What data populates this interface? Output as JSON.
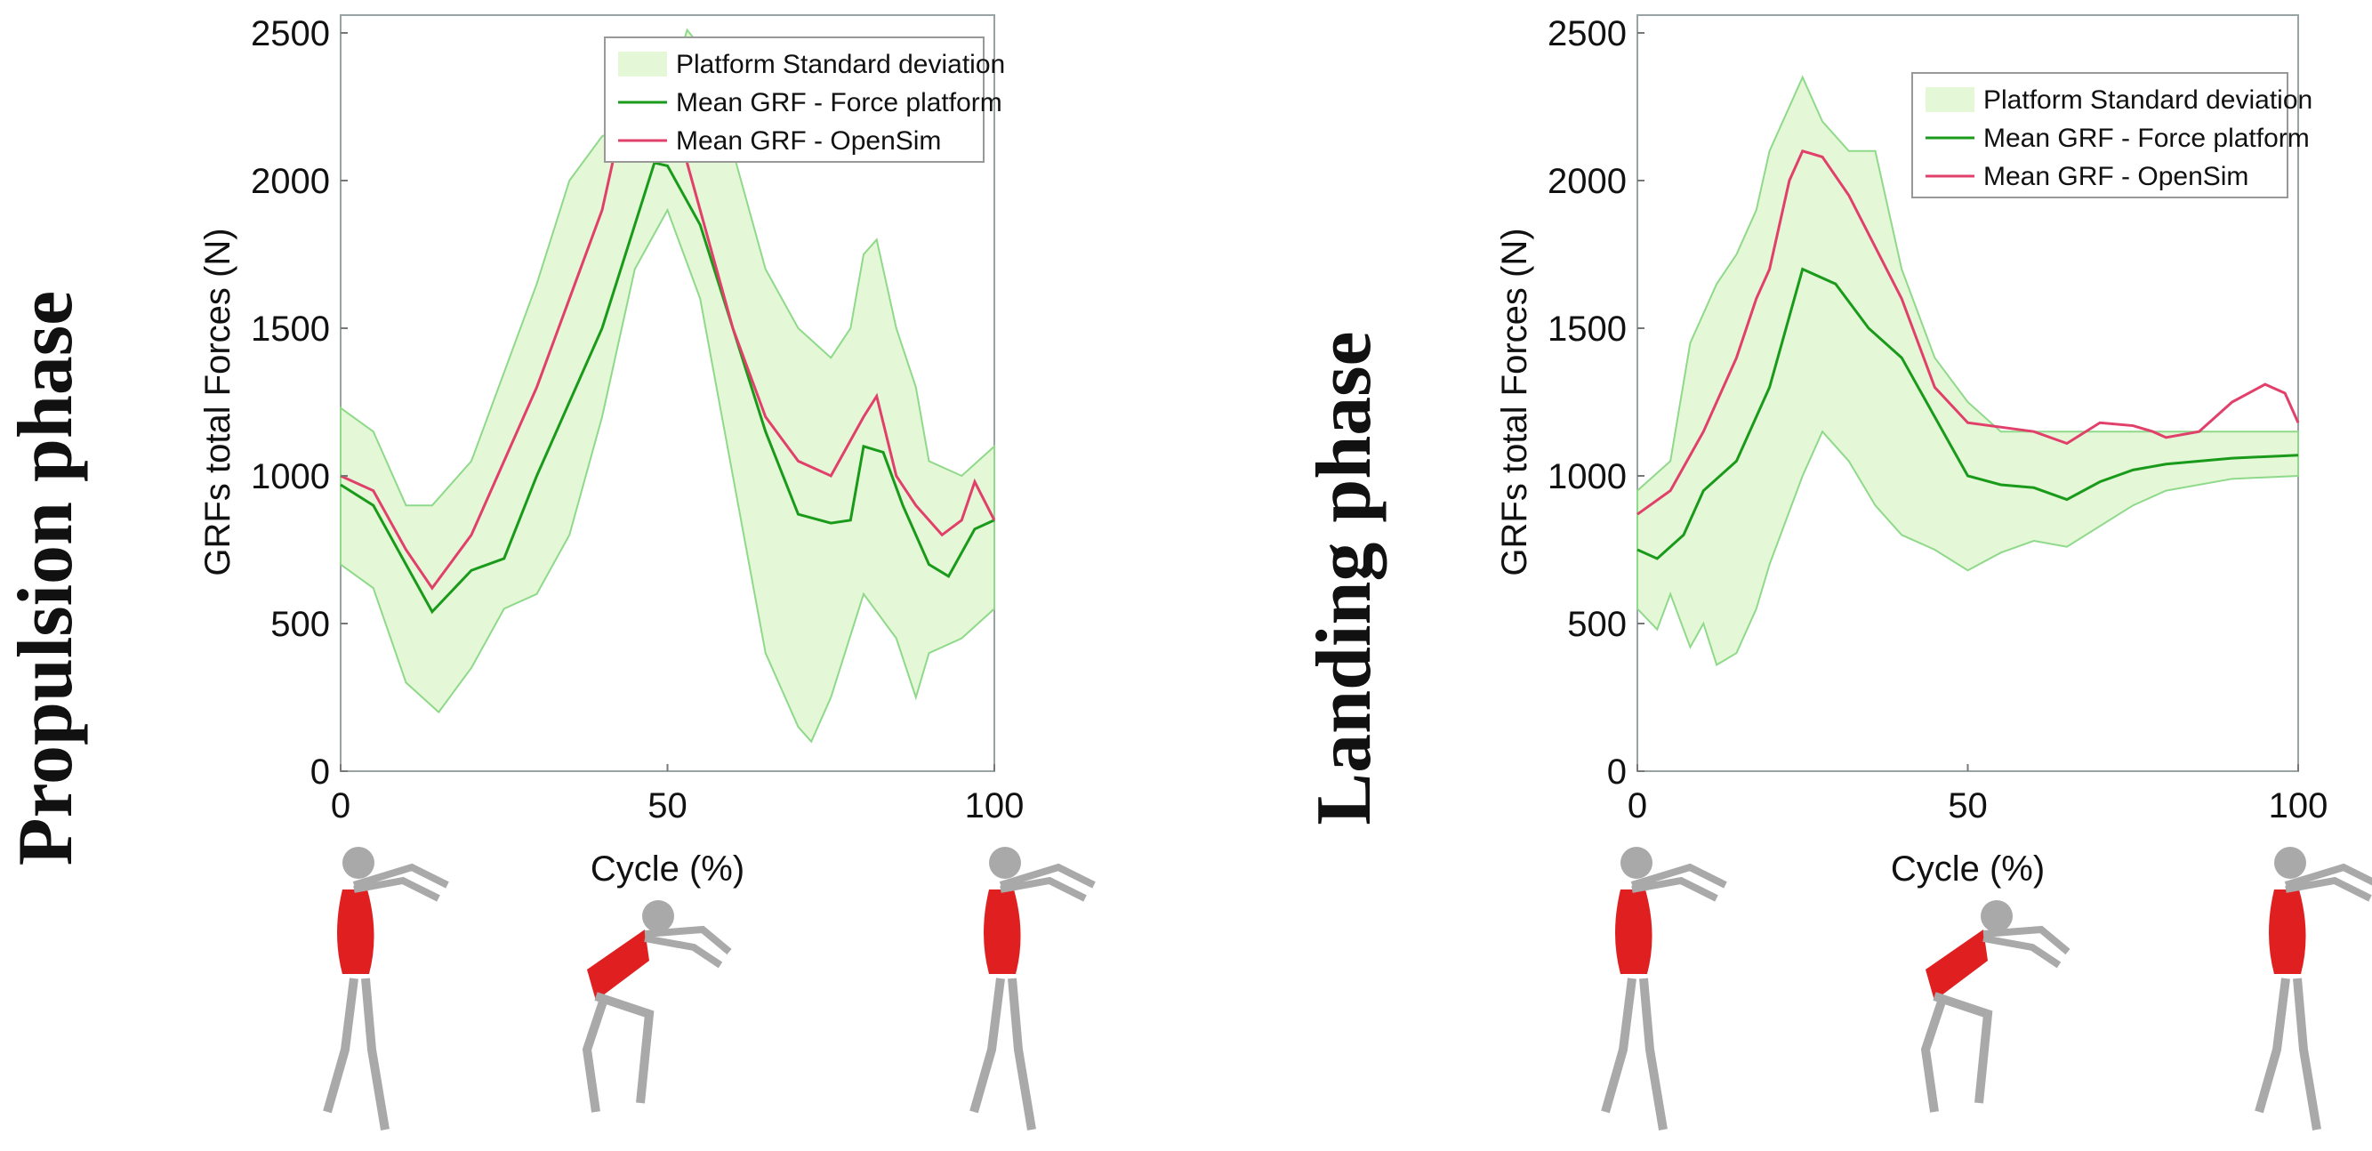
{
  "chart_data": [
    {
      "type": "line",
      "phase_label": "Propulsion phase",
      "xlabel": "Cycle (%)",
      "ylabel": "GRFs total Forces (N)",
      "xlim": [
        0,
        100
      ],
      "ylim": [
        0,
        2500
      ],
      "xticks": [
        "0",
        "50",
        "100"
      ],
      "yticks": [
        "0",
        "500",
        "1000",
        "1500",
        "2000",
        "2500"
      ],
      "legend_position": "top-right",
      "legend": [
        "Platform Standard deviation",
        "Mean GRF - Force platform",
        "Mean GRF - OpenSim"
      ],
      "colors": {
        "band": "#e4f7d6",
        "band_edge": "#8fd98a",
        "force": "#1a9a1a",
        "opensim": "#e0406a"
      },
      "band_upper": {
        "x": [
          0,
          5,
          10,
          14,
          20,
          30,
          35,
          40,
          45,
          50,
          53,
          57,
          60,
          65,
          70,
          75,
          78,
          80,
          82,
          85,
          88,
          90,
          95,
          100
        ],
        "y": [
          1230,
          1150,
          900,
          900,
          1050,
          1650,
          2000,
          2150,
          2200,
          2280,
          2510,
          2400,
          2100,
          1700,
          1500,
          1400,
          1500,
          1750,
          1800,
          1500,
          1300,
          1050,
          1000,
          1100
        ]
      },
      "band_lower": {
        "x": [
          0,
          5,
          10,
          15,
          20,
          25,
          30,
          35,
          40,
          45,
          50,
          55,
          60,
          65,
          70,
          72,
          75,
          80,
          85,
          88,
          90,
          95,
          100
        ],
        "y": [
          700,
          620,
          300,
          200,
          350,
          550,
          600,
          800,
          1200,
          1700,
          1900,
          1600,
          1000,
          400,
          150,
          100,
          250,
          600,
          450,
          250,
          400,
          450,
          550
        ]
      },
      "series": [
        {
          "name": "Mean GRF - Force platform",
          "x": [
            0,
            5,
            10,
            14,
            20,
            25,
            30,
            40,
            45,
            48,
            50,
            55,
            60,
            65,
            70,
            75,
            78,
            80,
            83,
            86,
            90,
            93,
            97,
            100
          ],
          "y": [
            970,
            900,
            700,
            540,
            680,
            720,
            1000,
            1500,
            1850,
            2060,
            2050,
            1850,
            1500,
            1150,
            870,
            840,
            850,
            1100,
            1080,
            900,
            700,
            660,
            820,
            850
          ]
        },
        {
          "name": "Mean GRF - OpenSim",
          "x": [
            0,
            5,
            10,
            14,
            20,
            25,
            30,
            35,
            40,
            43,
            47,
            50,
            55,
            60,
            65,
            70,
            75,
            80,
            82,
            85,
            88,
            92,
            95,
            97,
            100
          ],
          "y": [
            1000,
            950,
            750,
            620,
            800,
            1050,
            1300,
            1600,
            1900,
            2200,
            2430,
            2300,
            1900,
            1500,
            1200,
            1050,
            1000,
            1200,
            1270,
            1000,
            900,
            800,
            850,
            980,
            850
          ]
        }
      ]
    },
    {
      "type": "line",
      "phase_label": "Landing phase",
      "xlabel": "Cycle (%)",
      "ylabel": "GRFs total Forces (N)",
      "xlim": [
        0,
        100
      ],
      "ylim": [
        0,
        2500
      ],
      "xticks": [
        "0",
        "50",
        "100"
      ],
      "yticks": [
        "0",
        "500",
        "1000",
        "1500",
        "2000",
        "2500"
      ],
      "legend_position": "top-right",
      "legend": [
        "Platform Standard deviation",
        "Mean GRF - Force platform",
        "Mean GRF - OpenSim"
      ],
      "colors": {
        "band": "#e4f7d6",
        "band_edge": "#8fd98a",
        "force": "#1a9a1a",
        "opensim": "#e0406a"
      },
      "band_upper": {
        "x": [
          0,
          5,
          8,
          12,
          15,
          18,
          20,
          23,
          25,
          28,
          32,
          36,
          40,
          45,
          50,
          55,
          60,
          70,
          80,
          90,
          100
        ],
        "y": [
          950,
          1050,
          1450,
          1650,
          1750,
          1900,
          2100,
          2250,
          2350,
          2200,
          2100,
          2100,
          1700,
          1400,
          1250,
          1150,
          1150,
          1150,
          1150,
          1150,
          1150
        ]
      },
      "band_lower": {
        "x": [
          0,
          3,
          5,
          8,
          10,
          12,
          15,
          18,
          20,
          25,
          28,
          32,
          36,
          40,
          45,
          50,
          55,
          60,
          65,
          70,
          75,
          80,
          90,
          100
        ],
        "y": [
          550,
          480,
          600,
          420,
          500,
          360,
          400,
          550,
          700,
          1000,
          1150,
          1050,
          900,
          800,
          750,
          680,
          740,
          780,
          760,
          830,
          900,
          950,
          990,
          1000
        ]
      },
      "series": [
        {
          "name": "Mean GRF - Force platform",
          "x": [
            0,
            3,
            7,
            10,
            15,
            20,
            25,
            30,
            35,
            40,
            45,
            50,
            55,
            60,
            65,
            70,
            75,
            80,
            90,
            100
          ],
          "y": [
            750,
            720,
            800,
            950,
            1050,
            1300,
            1700,
            1650,
            1500,
            1400,
            1200,
            1000,
            970,
            960,
            920,
            980,
            1020,
            1040,
            1060,
            1070
          ]
        },
        {
          "name": "Mean GRF - OpenSim",
          "x": [
            0,
            5,
            10,
            15,
            18,
            20,
            23,
            25,
            28,
            32,
            40,
            45,
            50,
            60,
            65,
            70,
            75,
            78,
            80,
            85,
            90,
            95,
            98,
            100
          ],
          "y": [
            870,
            950,
            1150,
            1400,
            1600,
            1700,
            2000,
            2100,
            2080,
            1950,
            1600,
            1300,
            1180,
            1150,
            1110,
            1180,
            1170,
            1150,
            1130,
            1150,
            1250,
            1310,
            1280,
            1180
          ]
        }
      ]
    }
  ]
}
